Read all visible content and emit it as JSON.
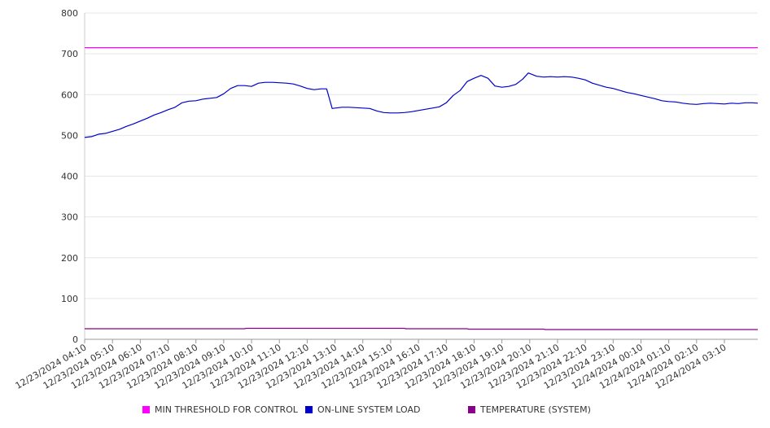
{
  "chart_data": {
    "type": "line",
    "title": "",
    "xlabel": "",
    "ylabel": "",
    "ylim": [
      0,
      800
    ],
    "yticks": [
      "0",
      "100",
      "200",
      "300",
      "400",
      "500",
      "600",
      "700",
      "800"
    ],
    "grid": "horizontal",
    "legend_placement": "bottom",
    "x_tick_labels": [
      "12/23/2024 04:10",
      "12/23/2024 05:10",
      "12/23/2024 06:10",
      "12/23/2024 07:10",
      "12/23/2024 08:10",
      "12/23/2024 09:10",
      "12/23/2024 10:10",
      "12/23/2024 11:10",
      "12/23/2024 12:10",
      "12/23/2024 13:10",
      "12/23/2024 14:10",
      "12/23/2024 15:10",
      "12/23/2024 16:10",
      "12/23/2024 17:10",
      "12/23/2024 18:10",
      "12/23/2024 19:10",
      "12/23/2024 20:10",
      "12/23/2024 21:10",
      "12/23/2024 22:10",
      "12/23/2024 23:10",
      "12/24/2024 00:10",
      "12/24/2024 01:10",
      "12/24/2024 02:10",
      "12/24/2024 03:10"
    ],
    "x_hours": [
      0,
      24.2
    ],
    "series": [
      {
        "name": "MIN THRESHOLD FOR CONTROL",
        "color": "#ff00ff",
        "points": [
          [
            0,
            715
          ],
          [
            24.2,
            715
          ]
        ]
      },
      {
        "name": "ON-LINE SYSTEM LOAD",
        "color": "#0000cc",
        "points": [
          [
            0,
            495
          ],
          [
            0.25,
            497
          ],
          [
            0.5,
            503
          ],
          [
            0.75,
            505
          ],
          [
            1.0,
            510
          ],
          [
            1.25,
            515
          ],
          [
            1.5,
            522
          ],
          [
            1.75,
            528
          ],
          [
            2.0,
            535
          ],
          [
            2.25,
            542
          ],
          [
            2.5,
            550
          ],
          [
            2.75,
            556
          ],
          [
            3.0,
            563
          ],
          [
            3.25,
            569
          ],
          [
            3.5,
            580
          ],
          [
            3.75,
            584
          ],
          [
            4.0,
            585
          ],
          [
            4.25,
            589
          ],
          [
            4.5,
            591
          ],
          [
            4.75,
            593
          ],
          [
            5.0,
            602
          ],
          [
            5.25,
            615
          ],
          [
            5.5,
            622
          ],
          [
            5.75,
            622
          ],
          [
            6.0,
            620
          ],
          [
            6.25,
            628
          ],
          [
            6.5,
            630
          ],
          [
            6.75,
            630
          ],
          [
            7.0,
            629
          ],
          [
            7.25,
            628
          ],
          [
            7.5,
            626
          ],
          [
            7.75,
            621
          ],
          [
            8.0,
            615
          ],
          [
            8.25,
            612
          ],
          [
            8.5,
            614
          ],
          [
            8.7,
            614
          ],
          [
            8.9,
            566
          ],
          [
            9.25,
            569
          ],
          [
            9.5,
            569
          ],
          [
            9.75,
            568
          ],
          [
            10.0,
            567
          ],
          [
            10.25,
            566
          ],
          [
            10.5,
            560
          ],
          [
            10.75,
            556
          ],
          [
            11.0,
            555
          ],
          [
            11.25,
            555
          ],
          [
            11.5,
            556
          ],
          [
            11.75,
            558
          ],
          [
            12.0,
            561
          ],
          [
            12.25,
            564
          ],
          [
            12.5,
            567
          ],
          [
            12.75,
            570
          ],
          [
            13.0,
            580
          ],
          [
            13.25,
            598
          ],
          [
            13.5,
            610
          ],
          [
            13.75,
            632
          ],
          [
            14.0,
            640
          ],
          [
            14.25,
            647
          ],
          [
            14.5,
            640
          ],
          [
            14.75,
            621
          ],
          [
            15.0,
            618
          ],
          [
            15.25,
            620
          ],
          [
            15.5,
            625
          ],
          [
            15.75,
            638
          ],
          [
            15.95,
            653
          ],
          [
            16.25,
            645
          ],
          [
            16.5,
            643
          ],
          [
            16.75,
            644
          ],
          [
            17.0,
            643
          ],
          [
            17.25,
            644
          ],
          [
            17.5,
            643
          ],
          [
            17.75,
            640
          ],
          [
            18.0,
            636
          ],
          [
            18.25,
            628
          ],
          [
            18.5,
            623
          ],
          [
            18.75,
            618
          ],
          [
            19.0,
            615
          ],
          [
            19.25,
            610
          ],
          [
            19.5,
            605
          ],
          [
            19.75,
            602
          ],
          [
            20.0,
            598
          ],
          [
            20.25,
            594
          ],
          [
            20.5,
            590
          ],
          [
            20.75,
            585
          ],
          [
            21.0,
            583
          ],
          [
            21.25,
            582
          ],
          [
            21.5,
            579
          ],
          [
            21.75,
            577
          ],
          [
            22.0,
            576
          ],
          [
            22.25,
            578
          ],
          [
            22.5,
            579
          ],
          [
            22.75,
            578
          ],
          [
            23.0,
            577
          ],
          [
            23.25,
            579
          ],
          [
            23.5,
            578
          ],
          [
            23.75,
            580
          ],
          [
            24.0,
            580
          ],
          [
            24.2,
            579
          ]
        ]
      },
      {
        "name": "TEMPERATURE (SYSTEM)",
        "color": "#880088",
        "points": [
          [
            0,
            26
          ],
          [
            5.75,
            26
          ],
          [
            5.8,
            27
          ],
          [
            11.5,
            27
          ],
          [
            11.55,
            26
          ],
          [
            13.75,
            26
          ],
          [
            13.8,
            25
          ],
          [
            16.5,
            25
          ],
          [
            16.55,
            24
          ],
          [
            24.2,
            24
          ]
        ]
      }
    ]
  }
}
